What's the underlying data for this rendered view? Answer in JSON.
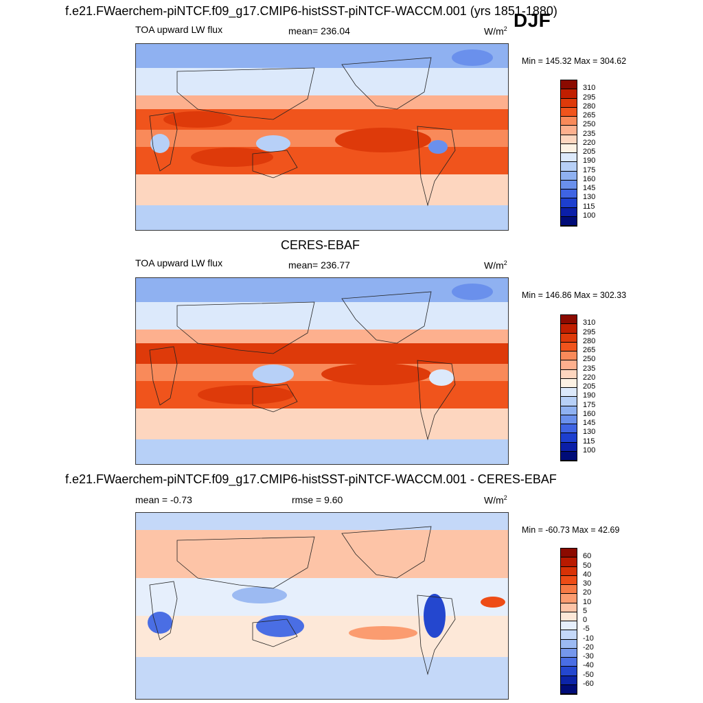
{
  "figure": {
    "season": "DJF",
    "panels": [
      {
        "id": "model",
        "title": "f.e21.FWaerchem-piNTCF.f09_g17.CMIP6-histSST-piNTCF-WACCM.001 (yrs 1851-1880)",
        "left_label": "TOA upward LW flux",
        "center_label": "mean= 236.04",
        "units_base": "W/m",
        "units_exp": "2",
        "minmax": "Min = 145.32 Max = 304.62"
      },
      {
        "id": "obs",
        "title": "CERES-EBAF",
        "left_label": "TOA upward LW flux",
        "center_label": "mean= 236.77",
        "units_base": "W/m",
        "units_exp": "2",
        "minmax": "Min = 146.86 Max = 302.33"
      },
      {
        "id": "diff",
        "title": "f.e21.FWaerchem-piNTCF.f09_g17.CMIP6-histSST-piNTCF-WACCM.001 - CERES-EBAF",
        "left_label": "mean =  -0.73",
        "center_label": "rmse =   9.60",
        "units_base": "W/m",
        "units_exp": "2",
        "minmax": "Min = -60.73 Max =  42.69"
      }
    ]
  },
  "chart_data": [
    {
      "type": "heatmap",
      "title": "f.e21.FWaerchem-piNTCF.f09_g17.CMIP6-histSST-piNTCF-WACCM.001 (yrs 1851-1880)",
      "variable": "TOA upward LW flux",
      "mean": 236.04,
      "min": 145.32,
      "max": 304.62,
      "units": "W/m2",
      "colorbar_levels": [
        310,
        295,
        280,
        265,
        250,
        235,
        220,
        205,
        190,
        175,
        160,
        145,
        130,
        115,
        100
      ],
      "colors": [
        "#8b0a00",
        "#c01e00",
        "#de3a0a",
        "#f0541c",
        "#f98a5a",
        "#fdb08e",
        "#fdd6bf",
        "#fdf2e4",
        "#dce9fb",
        "#b7d0f7",
        "#8fb1f1",
        "#6a90ec",
        "#3f64e3",
        "#1d3fcf",
        "#0b1fa8",
        "#000c78"
      ]
    },
    {
      "type": "heatmap",
      "title": "CERES-EBAF",
      "variable": "TOA upward LW flux",
      "mean": 236.77,
      "min": 146.86,
      "max": 302.33,
      "units": "W/m2",
      "colorbar_levels": [
        310,
        295,
        280,
        265,
        250,
        235,
        220,
        205,
        190,
        175,
        160,
        145,
        130,
        115,
        100
      ],
      "colors": [
        "#8b0a00",
        "#c01e00",
        "#de3a0a",
        "#f0541c",
        "#f98a5a",
        "#fdb08e",
        "#fdd6bf",
        "#fdf2e4",
        "#dce9fb",
        "#b7d0f7",
        "#8fb1f1",
        "#6a90ec",
        "#3f64e3",
        "#1d3fcf",
        "#0b1fa8",
        "#000c78"
      ]
    },
    {
      "type": "heatmap",
      "title": "f.e21.FWaerchem-piNTCF.f09_g17.CMIP6-histSST-piNTCF-WACCM.001 - CERES-EBAF",
      "mean": -0.73,
      "rmse": 9.6,
      "min": -60.73,
      "max": 42.69,
      "units": "W/m2",
      "colorbar_levels": [
        60,
        50,
        40,
        30,
        20,
        10,
        5,
        0,
        -5,
        -10,
        -20,
        -30,
        -40,
        -50,
        -60
      ],
      "colors": [
        "#8b0a00",
        "#b81a00",
        "#d83206",
        "#ee4c16",
        "#f77a45",
        "#fb9c70",
        "#fdc4a7",
        "#fde8d8",
        "#e6effc",
        "#c4d8f8",
        "#9cbaf2",
        "#7597ec",
        "#4a6ee4",
        "#2447cf",
        "#0c24a8",
        "#000c78"
      ]
    }
  ]
}
